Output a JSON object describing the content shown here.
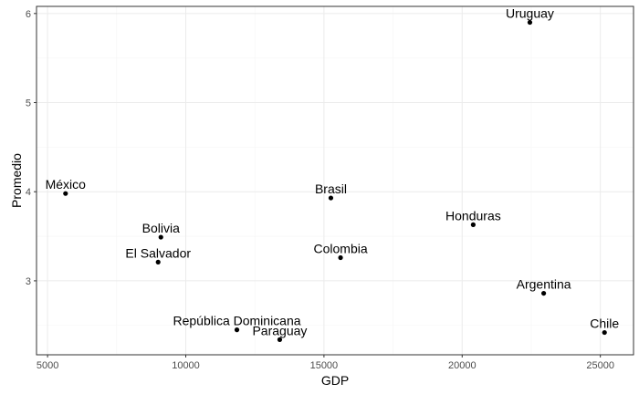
{
  "chart_data": {
    "type": "scatter",
    "xlabel": "GDP",
    "ylabel": "Promedio",
    "xlim": [
      4600,
      26200
    ],
    "ylim": [
      2.17,
      6.08
    ],
    "x_ticks": [
      5000,
      10000,
      15000,
      20000,
      25000
    ],
    "y_ticks": [
      3,
      4,
      5,
      6
    ],
    "x_minor": [
      7500,
      12500,
      17500,
      22500
    ],
    "y_minor": [
      2.5,
      3.5,
      4.5,
      5.5
    ],
    "grid": true,
    "points": [
      {
        "label": "Uruguay",
        "x": 22450,
        "y": 5.9
      },
      {
        "label": "México",
        "x": 5650,
        "y": 3.98
      },
      {
        "label": "Brasil",
        "x": 15250,
        "y": 3.93
      },
      {
        "label": "Honduras",
        "x": 20400,
        "y": 3.63
      },
      {
        "label": "Bolivia",
        "x": 9100,
        "y": 3.49
      },
      {
        "label": "Colombia",
        "x": 15600,
        "y": 3.26
      },
      {
        "label": "El Salvador",
        "x": 9000,
        "y": 3.21
      },
      {
        "label": "Argentina",
        "x": 22950,
        "y": 2.86
      },
      {
        "label": "República Dominicana",
        "x": 11850,
        "y": 2.45
      },
      {
        "label": "Chile",
        "x": 25150,
        "y": 2.42
      },
      {
        "label": "Paraguay",
        "x": 13400,
        "y": 2.34
      }
    ],
    "colors": {
      "panel_border": "#333333",
      "grid_major": "#ebebeb",
      "grid_minor": "#f5f5f5",
      "point": "#000000",
      "tick": "#333333"
    }
  }
}
